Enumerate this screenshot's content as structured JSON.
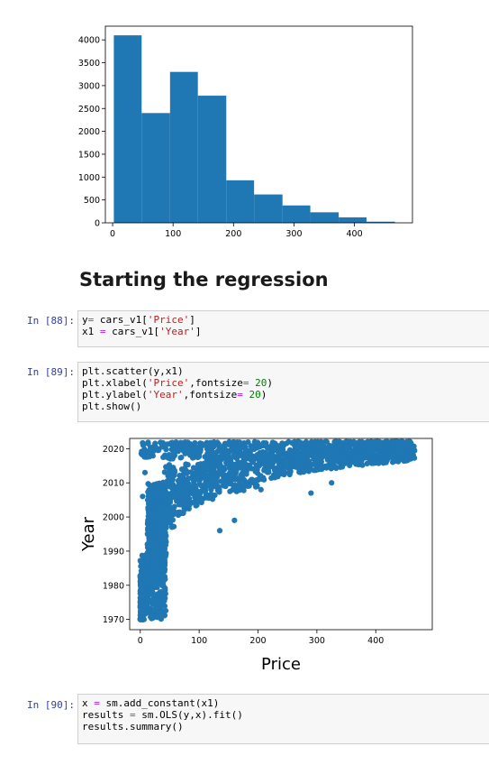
{
  "histogram": {
    "chart_data": {
      "type": "bar",
      "y_ticks": [
        0,
        500,
        1000,
        1500,
        2000,
        2500,
        3000,
        3500,
        4000
      ],
      "x_ticks": [
        0,
        100,
        200,
        300,
        400
      ],
      "xlim": [
        -12,
        496
      ],
      "ylim": [
        0,
        4300
      ],
      "bins": [
        {
          "x0": 2,
          "x1": 48,
          "count": 4100
        },
        {
          "x0": 48,
          "x1": 95,
          "count": 2400
        },
        {
          "x0": 95,
          "x1": 141,
          "count": 3300
        },
        {
          "x0": 141,
          "x1": 188,
          "count": 2780
        },
        {
          "x0": 188,
          "x1": 234,
          "count": 930
        },
        {
          "x0": 234,
          "x1": 281,
          "count": 620
        },
        {
          "x0": 281,
          "x1": 327,
          "count": 380
        },
        {
          "x0": 327,
          "x1": 374,
          "count": 230
        },
        {
          "x0": 374,
          "x1": 420,
          "count": 120
        },
        {
          "x0": 420,
          "x1": 467,
          "count": 25
        }
      ],
      "color": "#1f77b4"
    }
  },
  "heading": "Starting the regression",
  "cells": [
    {
      "prompt": "In [88]:",
      "lines": [
        [
          {
            "t": "y"
          },
          {
            "t": "=",
            "c": "op"
          },
          {
            "t": " cars_v1["
          },
          {
            "t": "'Price'",
            "c": "str"
          },
          {
            "t": "]"
          }
        ],
        [
          {
            "t": "x1 "
          },
          {
            "t": "=",
            "c": "op"
          },
          {
            "t": " cars_v1["
          },
          {
            "t": "'Year'",
            "c": "str"
          },
          {
            "t": "]"
          }
        ]
      ]
    },
    {
      "prompt": "In [89]:",
      "lines": [
        [
          {
            "t": "plt.scatter(y,x1)"
          }
        ],
        [
          {
            "t": "plt.xlabel("
          },
          {
            "t": "'Price'",
            "c": "str"
          },
          {
            "t": ",fontsize"
          },
          {
            "t": "=",
            "c": "op"
          },
          {
            "t": " "
          },
          {
            "t": "20",
            "c": "num"
          },
          {
            "t": ")"
          }
        ],
        [
          {
            "t": "plt.ylabel("
          },
          {
            "t": "'Year'",
            "c": "str"
          },
          {
            "t": ",fontsize"
          },
          {
            "t": "=",
            "c": "op"
          },
          {
            "t": " "
          },
          {
            "t": "20",
            "c": "num"
          },
          {
            "t": ")"
          }
        ],
        [
          {
            "t": "plt.show()"
          }
        ]
      ]
    },
    {
      "prompt": "In [90]:",
      "lines": [
        [
          {
            "t": "x "
          },
          {
            "t": "=",
            "c": "op"
          },
          {
            "t": " sm.add_constant(x1)"
          }
        ],
        [
          {
            "t": "results "
          },
          {
            "t": "=",
            "c": "op"
          },
          {
            "t": " sm.OLS(y,x).fit()"
          }
        ],
        [
          {
            "t": "results.summary()"
          }
        ]
      ]
    }
  ],
  "scatter": {
    "chart_data": {
      "type": "scatter",
      "xlabel": "Price",
      "ylabel": "Year",
      "x_ticks": [
        0,
        100,
        200,
        300,
        400
      ],
      "y_ticks": [
        1970,
        1980,
        1990,
        2000,
        2010,
        2020
      ],
      "xlim": [
        -18,
        496
      ],
      "ylim": [
        1967,
        2023
      ],
      "color": "#1f77b4",
      "trend": {
        "x": [
          0,
          10,
          20,
          30,
          40,
          50,
          60,
          80,
          100,
          120,
          150,
          180,
          200,
          230,
          260,
          300,
          350,
          400,
          460
        ],
        "y": [
          1972,
          1976,
          1988,
          1994,
          1999,
          2002,
          2004,
          2006,
          2008,
          2009,
          2011,
          2012,
          2013,
          2014,
          2015,
          2016,
          2017,
          2018,
          2019
        ]
      }
    }
  }
}
